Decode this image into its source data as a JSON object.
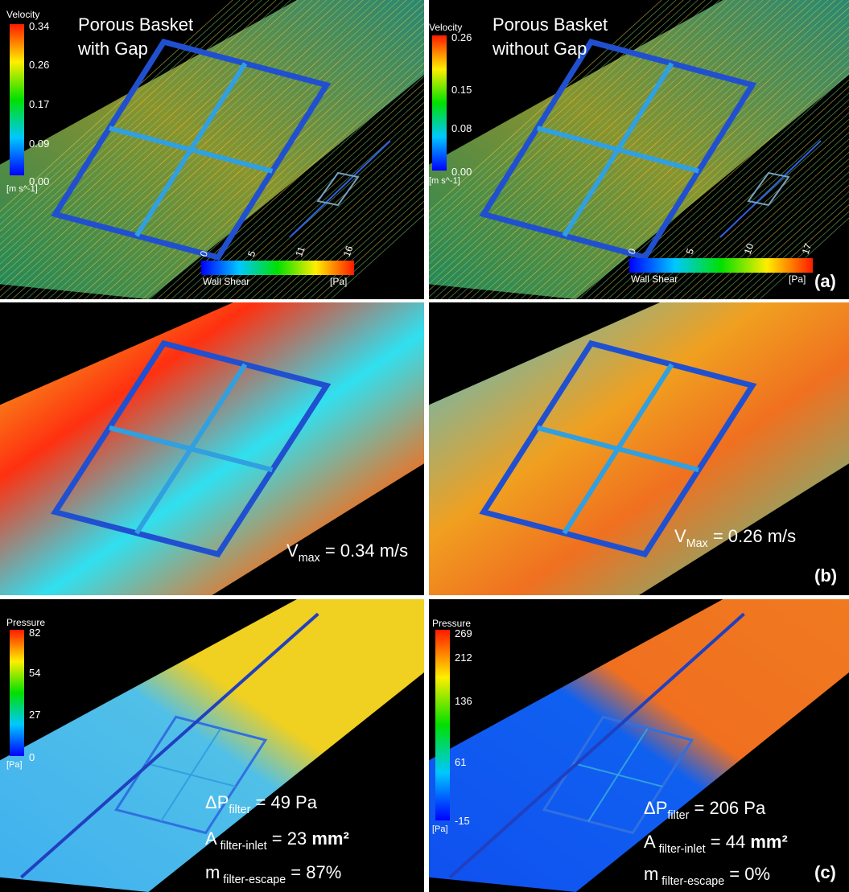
{
  "row_a": {
    "label": "(a)",
    "left": {
      "title": [
        "Porous Basket",
        "with Gap"
      ],
      "velocity": {
        "title": "Velocity",
        "ticks": [
          "0.34",
          "0.26",
          "0.17",
          "0.09",
          "0.00"
        ],
        "unit": "[m s^-1]"
      },
      "wall_shear": {
        "ticks": [
          "0",
          "5",
          "11",
          "16"
        ],
        "title": "Wall Shear",
        "unit": "[Pa]"
      }
    },
    "right": {
      "title": [
        "Porous Basket",
        "without Gap"
      ],
      "velocity": {
        "title": "Velocity",
        "ticks": [
          "0.26",
          "0.15",
          "0.08",
          "0.00"
        ],
        "unit": "[m s^-1]"
      },
      "wall_shear": {
        "ticks": [
          "0",
          "5",
          "10",
          "17"
        ],
        "title": "Wall Shear",
        "unit": "[Pa]"
      }
    }
  },
  "row_b": {
    "label": "(b)",
    "left": {
      "symbol": "V",
      "sub": "max",
      "text": " =  0.34 m/s"
    },
    "right": {
      "symbol": "V",
      "sub": "Max",
      "text": " =  0.26 m/s"
    }
  },
  "row_c": {
    "label": "(c)",
    "left": {
      "pressure": {
        "title": "Pressure",
        "ticks": [
          "82",
          "54",
          "27",
          "0"
        ],
        "unit": "[Pa]"
      },
      "lines": [
        {
          "symbol": "ΔP",
          "sub": "filter",
          "text": " = 49 Pa"
        },
        {
          "symbol": "A",
          "sub": " filter-inlet",
          "text": " = 23 ",
          "bold": "mm²"
        },
        {
          "symbol": "m",
          "sub": " filter-escape",
          "text": " =  87%"
        }
      ]
    },
    "right": {
      "pressure": {
        "title": "Pressure",
        "ticks": [
          "269",
          "212",
          "136",
          "61",
          "-15"
        ],
        "unit": "[Pa]"
      },
      "lines": [
        {
          "symbol": "ΔP",
          "sub": "filter",
          "text": " =  206 Pa"
        },
        {
          "symbol": "A",
          "sub": " filter-inlet",
          "text": " = 44 ",
          "bold": "mm²"
        },
        {
          "symbol": "m",
          "sub": " filter-escape",
          "text": " =  0%"
        }
      ]
    }
  }
}
